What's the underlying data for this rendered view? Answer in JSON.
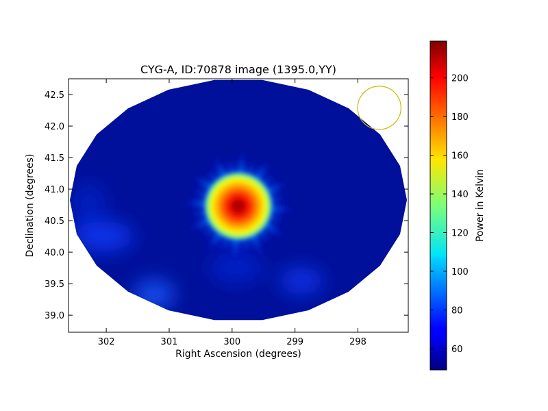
{
  "chart_data": {
    "type": "heatmap",
    "title": "CYG-A, ID:70878 image (1395.0,YY)",
    "xlabel": "Right Ascension (degrees)",
    "ylabel": "Declination (degrees)",
    "xlim": [
      302.6,
      297.2
    ],
    "ylim": [
      38.73,
      42.75
    ],
    "x_axis_inverted": true,
    "xticks": [
      302,
      301,
      300,
      299,
      298
    ],
    "xtick_labels": [
      "302",
      "301",
      "300",
      "299",
      "298"
    ],
    "yticks": [
      39.0,
      39.5,
      40.0,
      40.5,
      41.0,
      41.5,
      42.0,
      42.5
    ],
    "ytick_labels": [
      "39.0",
      "39.5",
      "40.0",
      "40.5",
      "41.0",
      "41.5",
      "42.0",
      "42.5"
    ],
    "colorbar": {
      "label": "Power in Kelvin",
      "range": [
        49,
        219
      ],
      "ticks": [
        60,
        80,
        100,
        120,
        140,
        160,
        180,
        200
      ],
      "tick_labels": [
        "60",
        "80",
        "100",
        "120",
        "140",
        "160",
        "180",
        "200"
      ],
      "colormap": "jet"
    },
    "source": {
      "ra": 299.9,
      "dec": 40.73,
      "peak_kelvin": 215
    },
    "beam_marker": {
      "ra": 297.66,
      "dec": 42.29,
      "radius_deg": 0.37,
      "color": "#bfbf00"
    },
    "background_kelvin": 57,
    "spokes": 24
  }
}
